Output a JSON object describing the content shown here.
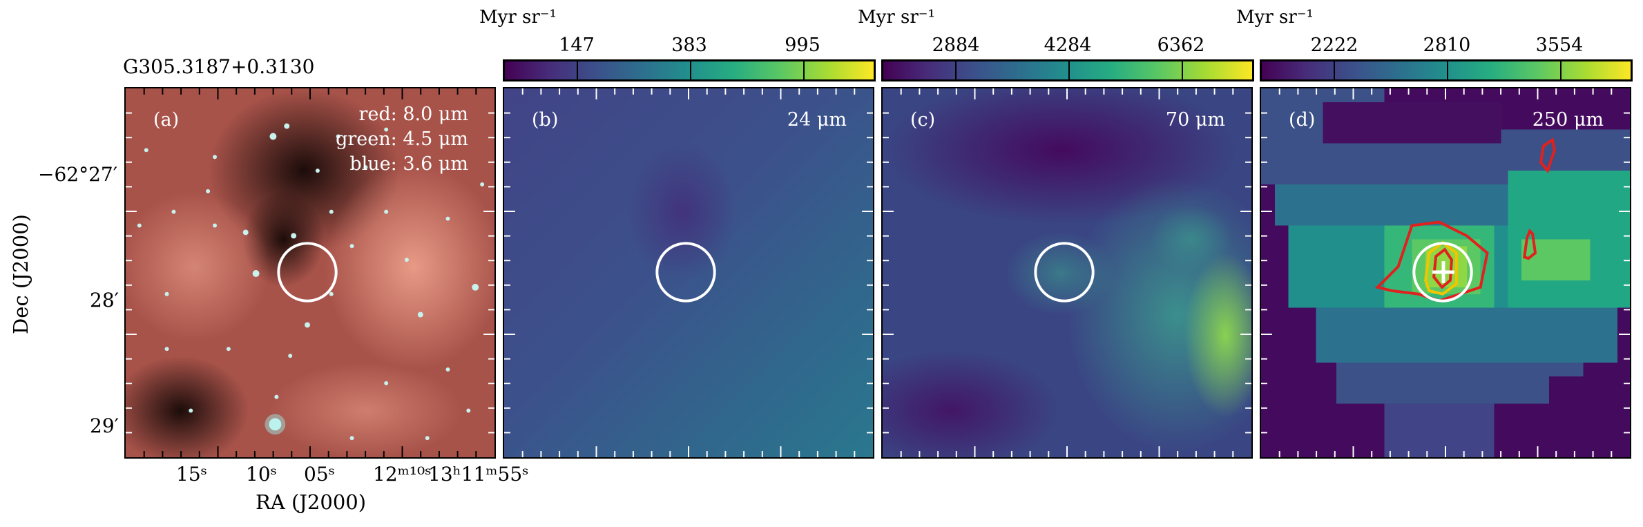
{
  "source_name": "G305.3187+0.3130",
  "colorbar_unit": "Myr sr⁻¹",
  "panels": [
    {
      "label": "(a)",
      "legend": [
        "red: 8.0 μm",
        "green: 4.5 μm",
        "blue: 3.6 μm"
      ]
    },
    {
      "label": "(b)",
      "band": "24 μm",
      "ticks": [
        "147",
        "383",
        "995"
      ]
    },
    {
      "label": "(c)",
      "band": "70 μm",
      "ticks": [
        "2884",
        "4284",
        "6362"
      ]
    },
    {
      "label": "(d)",
      "band": "250 μm",
      "ticks": [
        "2222",
        "2810",
        "3554"
      ]
    }
  ],
  "axes": {
    "ylabel": "Dec (J2000)",
    "xlabel": "RA (J2000)",
    "yticks": [
      "−62°27′",
      "28′",
      "29′"
    ],
    "xticks": [
      "15ˢ",
      "10ˢ",
      "05ˢ",
      "12ᵐ¹⁰ˢ",
      "13ʰ11ᵐ55ˢ"
    ]
  },
  "colors": {
    "aperture": "#ffffff",
    "contour": "#e0211d",
    "viridis_low": "#440154",
    "viridis_high": "#fde725"
  }
}
